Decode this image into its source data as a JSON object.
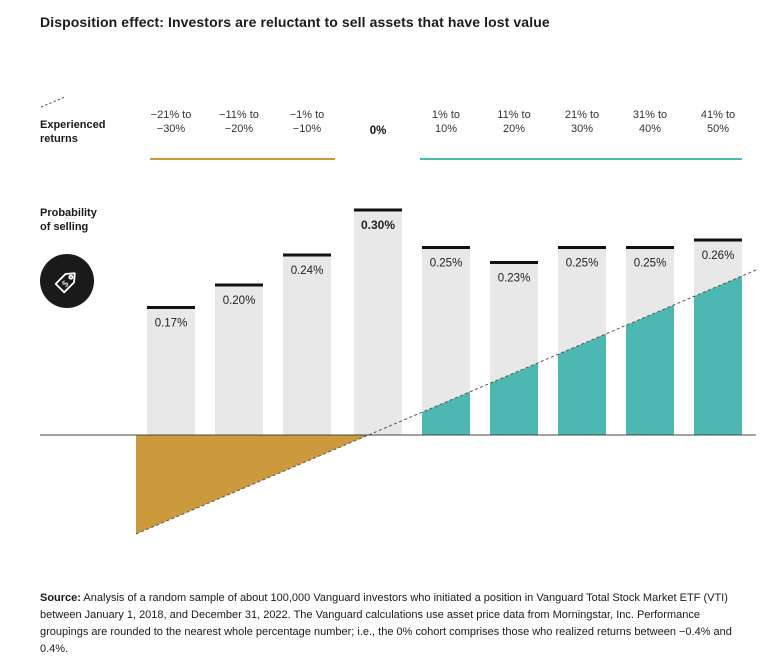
{
  "title": "Disposition effect: Investors are reluctant to sell assets that have lost value",
  "row_labels": {
    "experienced": [
      "Experienced",
      "returns"
    ],
    "probability": [
      "Probability",
      "of selling"
    ]
  },
  "icons": {
    "tag": "price-tag-icon"
  },
  "colors": {
    "loss": "#cc9a3d",
    "gain": "#4db8b1",
    "bar": "#e8e8e8",
    "cap": "#111111",
    "axis": "#444444"
  },
  "chart_data": {
    "type": "bar",
    "title": "Disposition effect: Investors are reluctant to sell assets that have lost value",
    "xlabel": "Experienced returns",
    "ylabel": "Probability of selling",
    "categories": [
      [
        "−21% to",
        "−30%"
      ],
      [
        "−11% to",
        "−20%"
      ],
      [
        "−1% to",
        "−10%"
      ],
      [
        "0%"
      ],
      [
        "1% to",
        "10%"
      ],
      [
        "11% to",
        "20%"
      ],
      [
        "21% to",
        "30%"
      ],
      [
        "31% to",
        "40%"
      ],
      [
        "41% to",
        "50%"
      ]
    ],
    "values": [
      0.17,
      0.2,
      0.24,
      0.3,
      0.25,
      0.23,
      0.25,
      0.25,
      0.26
    ],
    "value_labels": [
      "0.17%",
      "0.20%",
      "0.24%",
      "0.30%",
      "0.25%",
      "0.23%",
      "0.25%",
      "0.25%",
      "0.26%"
    ],
    "ylim": [
      0,
      0.35
    ],
    "returns_trend": {
      "start_return_pct": -30,
      "end_return_pct": 50
    }
  },
  "source": {
    "label": "Source:",
    "text": "Analysis of a random sample of about 100,000 Vanguard investors who initiated a position in Vanguard Total Stock Market ETF (VTI) between January 1, 2018, and December 31, 2022. The Vanguard calculations use asset price data from Morningstar, Inc. Performance groupings are rounded to the nearest whole percentage number; i.e., the 0% cohort comprises those who realized returns between −0.4% and 0.4%."
  }
}
